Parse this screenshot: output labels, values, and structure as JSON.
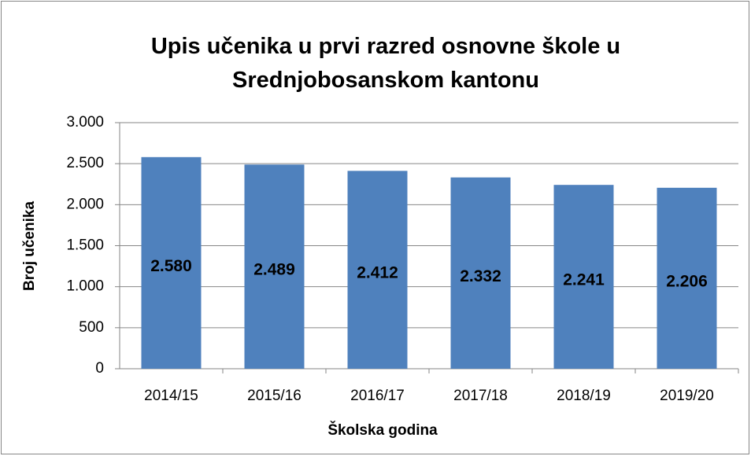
{
  "chart_data": {
    "type": "bar",
    "title": "Upis učenika u prvi razred osnovne škole u Srednjobosanskom kantonu",
    "x_label": "Školska godina",
    "y_label": "Broj učenika",
    "categories": [
      "2014/15",
      "2015/16",
      "2016/17",
      "2017/18",
      "2018/19",
      "2019/20"
    ],
    "values": [
      2580,
      2489,
      2412,
      2332,
      2241,
      2206
    ],
    "value_labels": [
      "2.580",
      "2.489",
      "2.412",
      "2.332",
      "2.241",
      "2.206"
    ],
    "color": "#4f81bd",
    "ylim": [
      0,
      3000
    ],
    "yticks": [
      0,
      500,
      {
        "value": 1000,
        "label": "1.000"
      },
      {
        "value": 1500,
        "label": "1.500"
      },
      {
        "value": 2000,
        "label": "2.000"
      },
      {
        "value": 2500,
        "label": "2.500"
      },
      {
        "value": 3000,
        "label": "3.000"
      }
    ],
    "grid": true
  }
}
